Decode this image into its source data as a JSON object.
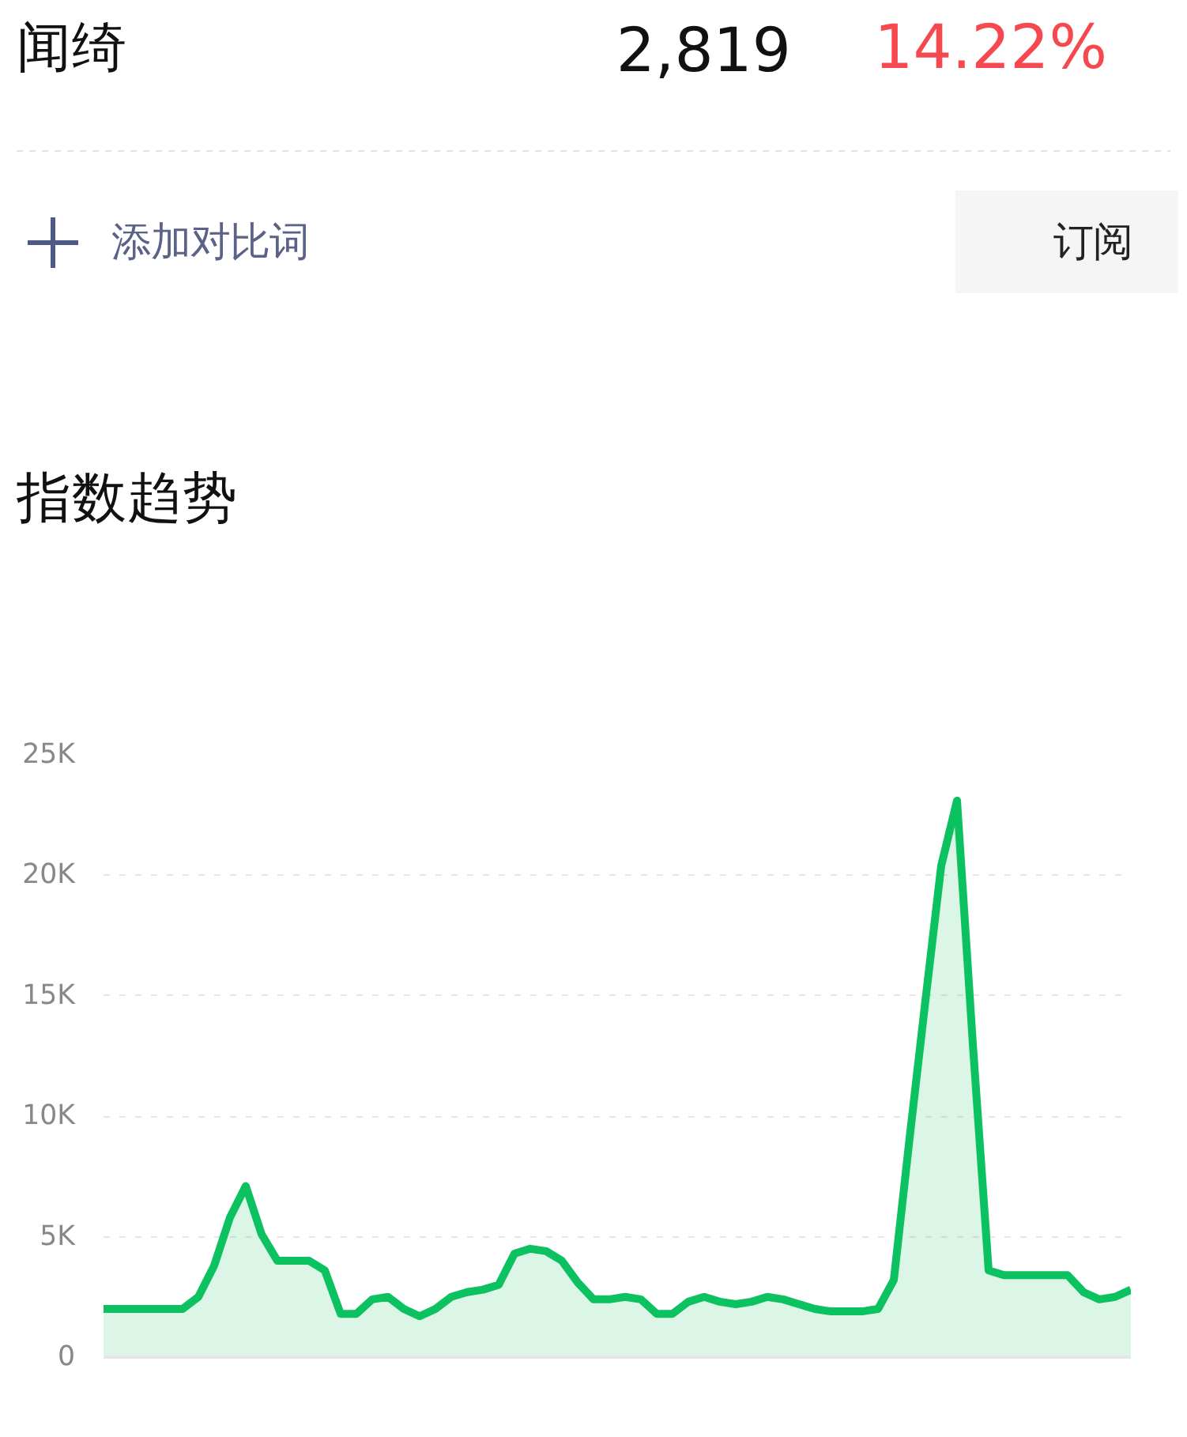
{
  "chart_data": {
    "type": "area",
    "title": "指数趋势",
    "annotations": [
      "闻绮",
      "2,819",
      "14.22%",
      "添加对比词",
      "订阅"
    ],
    "categories": [
      null,
      null,
      null,
      null,
      null,
      null,
      null,
      null,
      null,
      null,
      null,
      null,
      null,
      null,
      null,
      null,
      null,
      null,
      null,
      null,
      null,
      null,
      null,
      null,
      null,
      null,
      null,
      null,
      null,
      null,
      null,
      null,
      null,
      null,
      null,
      null,
      null,
      null,
      null,
      null,
      null,
      null,
      null,
      null,
      null,
      null,
      null,
      null,
      null,
      null,
      null,
      null,
      null,
      null,
      null,
      null,
      null,
      null,
      null,
      null,
      null,
      null,
      null,
      null,
      null,
      null
    ],
    "series": [
      {
        "color": "#0bc160",
        "values": [
          2000,
          2000,
          2000,
          2000,
          2000,
          2000,
          2500,
          3800,
          5800,
          7100,
          5100,
          4000,
          4000,
          4000,
          3600,
          1800,
          1800,
          2400,
          2500,
          2000,
          1700,
          2000,
          2500,
          2700,
          2800,
          3000,
          4300,
          4500,
          4400,
          4000,
          3100,
          2400,
          2400,
          2500,
          2400,
          1800,
          1800,
          2300,
          2500,
          2300,
          2200,
          2300,
          2500,
          2400,
          2200,
          2000,
          1900,
          1900,
          1900,
          2000,
          3200,
          9100,
          14800,
          20400,
          23100,
          13000,
          3600,
          3400,
          3400,
          3400,
          3400,
          3400,
          2700,
          2400,
          2500,
          2800
        ]
      }
    ],
    "ylim": [
      0,
      25000
    ],
    "yticks": [
      0,
      {
        "value": 5000,
        "label": "5K"
      },
      {
        "value": 10000,
        "label": "10K"
      },
      {
        "value": 15000,
        "label": "15K"
      },
      {
        "value": 20000,
        "label": "20K"
      },
      {
        "value": 25000,
        "label": "25K"
      }
    ],
    "grid": "y"
  }
}
